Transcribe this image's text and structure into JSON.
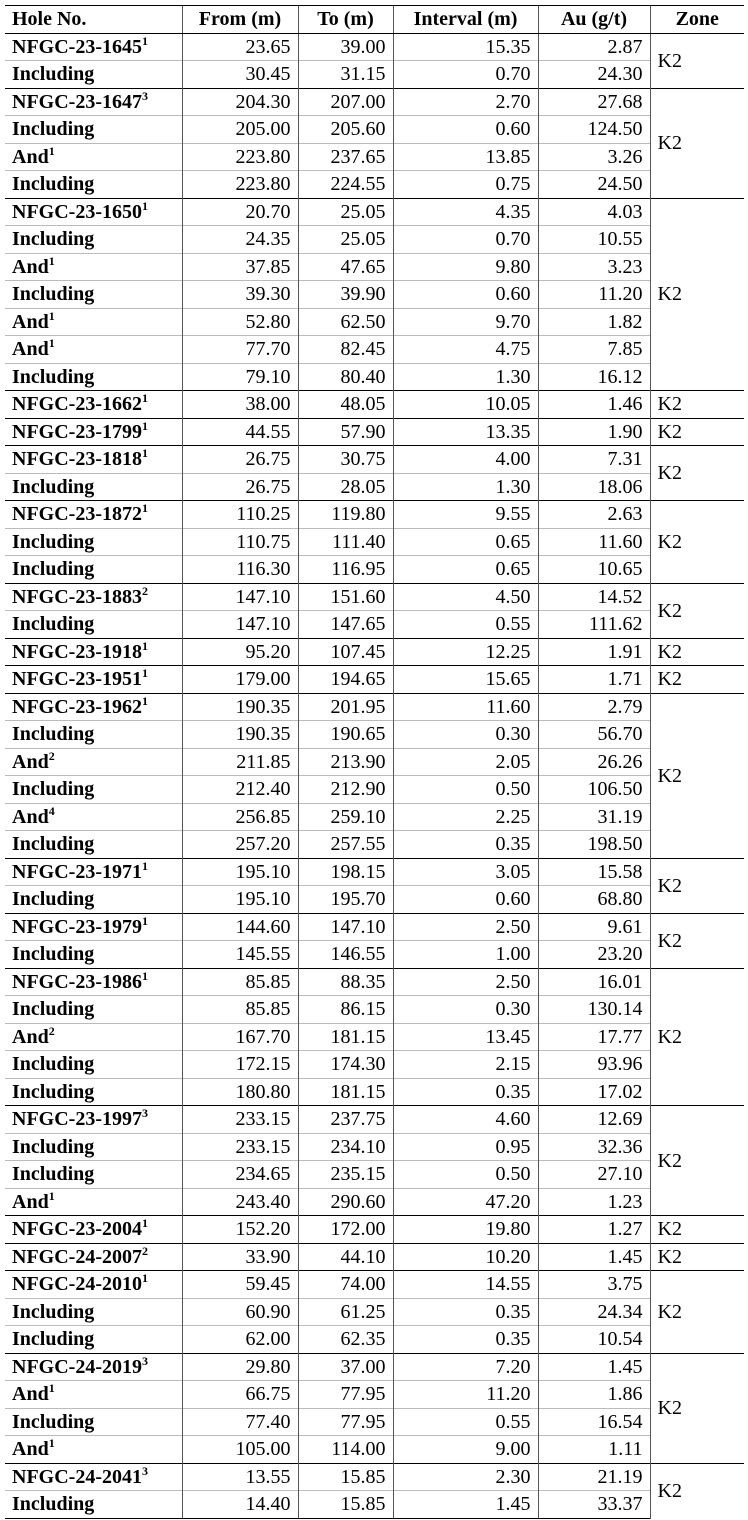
{
  "headers": [
    "Hole No.",
    "From (m)",
    "To (m)",
    "Interval (m)",
    "Au (g/t)",
    "Zone"
  ],
  "groups": [
    {
      "zone": "K2",
      "rows": [
        [
          "NFGC-23-1645",
          "1",
          "23.65",
          "39.00",
          "15.35",
          "2.87"
        ],
        [
          "Including",
          "",
          "30.45",
          "31.15",
          "0.70",
          "24.30"
        ]
      ]
    },
    {
      "zone": "K2",
      "rows": [
        [
          "NFGC-23-1647",
          "3",
          "204.30",
          "207.00",
          "2.70",
          "27.68"
        ],
        [
          "Including",
          "",
          "205.00",
          "205.60",
          "0.60",
          "124.50"
        ],
        [
          "And",
          "1",
          "223.80",
          "237.65",
          "13.85",
          "3.26"
        ],
        [
          "Including",
          "",
          "223.80",
          "224.55",
          "0.75",
          "24.50"
        ]
      ]
    },
    {
      "zone": "K2",
      "rows": [
        [
          "NFGC-23-1650",
          "1",
          "20.70",
          "25.05",
          "4.35",
          "4.03"
        ],
        [
          "Including",
          "",
          "24.35",
          "25.05",
          "0.70",
          "10.55"
        ],
        [
          "And",
          "1",
          "37.85",
          "47.65",
          "9.80",
          "3.23"
        ],
        [
          "Including",
          "",
          "39.30",
          "39.90",
          "0.60",
          "11.20"
        ],
        [
          "And",
          "1",
          "52.80",
          "62.50",
          "9.70",
          "1.82"
        ],
        [
          "And",
          "1",
          "77.70",
          "82.45",
          "4.75",
          "7.85"
        ],
        [
          "Including",
          "",
          "79.10",
          "80.40",
          "1.30",
          "16.12"
        ]
      ]
    },
    {
      "zone": "K2",
      "rows": [
        [
          "NFGC-23-1662",
          "1",
          "38.00",
          "48.05",
          "10.05",
          "1.46"
        ]
      ]
    },
    {
      "zone": "K2",
      "rows": [
        [
          "NFGC-23-1799",
          "1",
          "44.55",
          "57.90",
          "13.35",
          "1.90"
        ]
      ]
    },
    {
      "zone": "K2",
      "rows": [
        [
          "NFGC-23-1818",
          "1",
          "26.75",
          "30.75",
          "4.00",
          "7.31"
        ],
        [
          "Including",
          "",
          "26.75",
          "28.05",
          "1.30",
          "18.06"
        ]
      ]
    },
    {
      "zone": "K2",
      "rows": [
        [
          "NFGC-23-1872",
          "1",
          "110.25",
          "119.80",
          "9.55",
          "2.63"
        ],
        [
          "Including",
          "",
          "110.75",
          "111.40",
          "0.65",
          "11.60"
        ],
        [
          "Including",
          "",
          "116.30",
          "116.95",
          "0.65",
          "10.65"
        ]
      ]
    },
    {
      "zone": "K2",
      "rows": [
        [
          "NFGC-23-1883",
          "2",
          "147.10",
          "151.60",
          "4.50",
          "14.52"
        ],
        [
          "Including",
          "",
          "147.10",
          "147.65",
          "0.55",
          "111.62"
        ]
      ]
    },
    {
      "zone": "K2",
      "rows": [
        [
          "NFGC-23-1918",
          "1",
          "95.20",
          "107.45",
          "12.25",
          "1.91"
        ]
      ]
    },
    {
      "zone": "K2",
      "rows": [
        [
          "NFGC-23-1951",
          "1",
          "179.00",
          "194.65",
          "15.65",
          "1.71"
        ]
      ]
    },
    {
      "zone": "K2",
      "rows": [
        [
          "NFGC-23-1962",
          "1",
          "190.35",
          "201.95",
          "11.60",
          "2.79"
        ],
        [
          "Including",
          "",
          "190.35",
          "190.65",
          "0.30",
          "56.70"
        ],
        [
          "And",
          "2",
          "211.85",
          "213.90",
          "2.05",
          "26.26"
        ],
        [
          "Including",
          "",
          "212.40",
          "212.90",
          "0.50",
          "106.50"
        ],
        [
          "And",
          "4",
          "256.85",
          "259.10",
          "2.25",
          "31.19"
        ],
        [
          "Including",
          "",
          "257.20",
          "257.55",
          "0.35",
          "198.50"
        ]
      ]
    },
    {
      "zone": "K2",
      "rows": [
        [
          "NFGC-23-1971",
          "1",
          "195.10",
          "198.15",
          "3.05",
          "15.58"
        ],
        [
          "Including",
          "",
          "195.10",
          "195.70",
          "0.60",
          "68.80"
        ]
      ]
    },
    {
      "zone": "K2",
      "rows": [
        [
          "NFGC-23-1979",
          "1",
          "144.60",
          "147.10",
          "2.50",
          "9.61"
        ],
        [
          "Including",
          "",
          "145.55",
          "146.55",
          "1.00",
          "23.20"
        ]
      ]
    },
    {
      "zone": "K2",
      "rows": [
        [
          "NFGC-23-1986",
          "1",
          "85.85",
          "88.35",
          "2.50",
          "16.01"
        ],
        [
          "Including",
          "",
          "85.85",
          "86.15",
          "0.30",
          "130.14"
        ],
        [
          "And",
          "2",
          "167.70",
          "181.15",
          "13.45",
          "17.77"
        ],
        [
          "Including",
          "",
          "172.15",
          "174.30",
          "2.15",
          "93.96"
        ],
        [
          "Including",
          "",
          "180.80",
          "181.15",
          "0.35",
          "17.02"
        ]
      ]
    },
    {
      "zone": "K2",
      "rows": [
        [
          "NFGC-23-1997",
          "3",
          "233.15",
          "237.75",
          "4.60",
          "12.69"
        ],
        [
          "Including",
          "",
          "233.15",
          "234.10",
          "0.95",
          "32.36"
        ],
        [
          "Including",
          "",
          "234.65",
          "235.15",
          "0.50",
          "27.10"
        ],
        [
          "And",
          "1",
          "243.40",
          "290.60",
          "47.20",
          "1.23"
        ]
      ]
    },
    {
      "zone": "K2",
      "rows": [
        [
          "NFGC-23-2004",
          "1",
          "152.20",
          "172.00",
          "19.80",
          "1.27"
        ]
      ]
    },
    {
      "zone": "K2",
      "rows": [
        [
          "NFGC-24-2007",
          "2",
          "33.90",
          "44.10",
          "10.20",
          "1.45"
        ]
      ]
    },
    {
      "zone": "K2",
      "rows": [
        [
          "NFGC-24-2010",
          "1",
          "59.45",
          "74.00",
          "14.55",
          "3.75"
        ],
        [
          "Including",
          "",
          "60.90",
          "61.25",
          "0.35",
          "24.34"
        ],
        [
          "Including",
          "",
          "62.00",
          "62.35",
          "0.35",
          "10.54"
        ]
      ]
    },
    {
      "zone": "K2",
      "rows": [
        [
          "NFGC-24-2019",
          "3",
          "29.80",
          "37.00",
          "7.20",
          "1.45"
        ],
        [
          "And",
          "1",
          "66.75",
          "77.95",
          "11.20",
          "1.86"
        ],
        [
          "Including",
          "",
          "77.40",
          "77.95",
          "0.55",
          "16.54"
        ],
        [
          "And",
          "1",
          "105.00",
          "114.00",
          "9.00",
          "1.11"
        ]
      ]
    },
    {
      "zone": "K2",
      "rows": [
        [
          "NFGC-24-2041",
          "3",
          "13.55",
          "15.85",
          "2.30",
          "21.19"
        ],
        [
          "Including",
          "",
          "14.40",
          "15.85",
          "1.45",
          "33.37"
        ]
      ]
    }
  ]
}
